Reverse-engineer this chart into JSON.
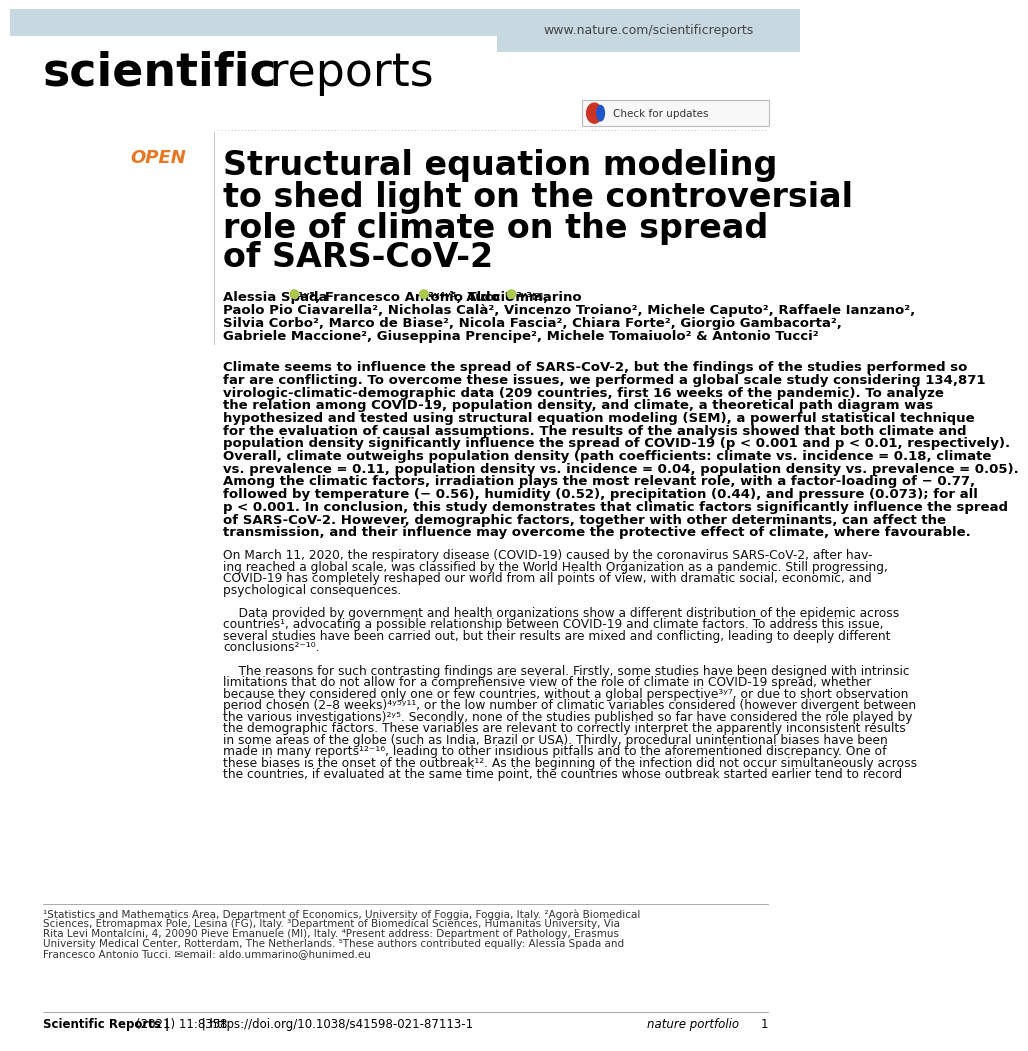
{
  "header_bg_color": "#c8d8e0",
  "header_text": "www.nature.com/scientificreports",
  "header_text_color": "#444444",
  "logo_bold": "scientific",
  "logo_regular": " reports",
  "logo_color": "#000000",
  "open_label": "OPEN",
  "open_color": "#e87722",
  "article_title_lines": [
    "Structural equation modeling",
    "to shed light on the controversial",
    "role of climate on the spread",
    "of SARS-CoV-2"
  ],
  "title_color": "#000000",
  "authors_line2": "Paolo Pio Ciavarella², Nicholas Calà², Vincenzo Troiano², Michele Caputo², Raffaele Ianzano²,",
  "authors_line3": "Silvia Corbo², Marco de Biase², Nicola Fascia², Chiara Forte², Giorgio Gambacorta²,",
  "authors_line4": "Gabriele Maccione², Giuseppina Prencipe², Michele Tomaiuolo² & Antonio Tucci²",
  "abstract_lines": [
    "Climate seems to influence the spread of SARS-CoV-2, but the findings of the studies performed so",
    "far are conflicting. To overcome these issues, we performed a global scale study considering 134,871",
    "virologic-climatic-demographic data (209 countries, first 16 weeks of the pandemic). To analyze",
    "the relation among COVID-19, population density, and climate, a theoretical path diagram was",
    "hypothesized and tested using structural equation modeling (SEM), a powerful statistical technique",
    "for the evaluation of causal assumptions. The results of the analysis showed that both climate and",
    "population density significantly influence the spread of COVID-19 (p < 0.001 and p < 0.01, respectively).",
    "Overall, climate outweighs population density (path coefficients: climate vs. incidence = 0.18, climate",
    "vs. prevalence = 0.11, population density vs. incidence = 0.04, population density vs. prevalence = 0.05).",
    "Among the climatic factors, irradiation plays the most relevant role, with a factor-loading of − 0.77,",
    "followed by temperature (− 0.56), humidity (0.52), precipitation (0.44), and pressure (0.073); for all",
    "p < 0.001. In conclusion, this study demonstrates that climatic factors significantly influence the spread",
    "of SARS-CoV-2. However, demographic factors, together with other determinants, can affect the",
    "transmission, and their influence may overcome the protective effect of climate, where favourable."
  ],
  "body_lines": [
    "On March 11, 2020, the respiratory disease (COVID-19) caused by the coronavirus SARS-CoV-2, after hav-",
    "ing reached a global scale, was classified by the World Health Organization as a pandemic. Still progressing,",
    "COVID-19 has completely reshaped our world from all points of view, with dramatic social, economic, and",
    "psychological consequences.",
    "",
    "    Data provided by government and health organizations show a different distribution of the epidemic across",
    "countries¹, advocating a possible relationship between COVID-19 and climate factors. To address this issue,",
    "several studies have been carried out, but their results are mixed and conflicting, leading to deeply different",
    "conclusions²⁻¹⁰.",
    "",
    "    The reasons for such contrasting findings are several. Firstly, some studies have been designed with intrinsic",
    "limitations that do not allow for a comprehensive view of the role of climate in COVID-19 spread, whether",
    "because they considered only one or few countries, without a global perspective³ʸ⁷, or due to short observation",
    "period chosen (2–8 weeks)⁴ʸ⁵ʸ¹¹, or the low number of climatic variables considered (however divergent between",
    "the various investigations)²ʸ⁵. Secondly, none of the studies published so far have considered the role played by",
    "the demographic factors. These variables are relevant to correctly interpret the apparently inconsistent results",
    "in some areas of the globe (such as India, Brazil or USA). Thirdly, procedural unintentional biases have been",
    "made in many reports¹²⁻¹⁶, leading to other insidious pitfalls and to the aforementioned discrepancy. One of",
    "these biases is the onset of the outbreak¹². As the beginning of the infection did not occur simultaneously across",
    "the countries, if evaluated at the same time point, the countries whose outbreak started earlier tend to record"
  ],
  "footnote_lines": [
    "¹Statistics and Mathematics Area, Department of Economics, University of Foggia, Foggia, Italy. ²Agorà Biomedical",
    "Sciences, Etromapmax Pole, Lesina (FG), Italy. ³Department of Biomedical Sciences, Humanitas University, Via",
    "Rita Levi Montalcini, 4, 20090 Pieve Emanuele (MI), Italy. ⁴Present address: Department of Pathology, Erasmus",
    "University Medical Center, Rotterdam, The Netherlands. ⁵These authors contributed equally: Alessia Spada and",
    "Francesco Antonio Tucci. ✉email: aldo.ummarino@hunimed.eu"
  ],
  "footer_journal": "Scientific Reports |",
  "footer_year": "(2021) 11:8358",
  "footer_doi": " | https://doi.org/10.1038/s41598-021-87113-1",
  "footer_nature": "nature portfolio",
  "footer_page": "1",
  "bg_color": "#ffffff",
  "text_color": "#000000",
  "body_text_color": "#111111",
  "orcid_color": "#a8c84e"
}
